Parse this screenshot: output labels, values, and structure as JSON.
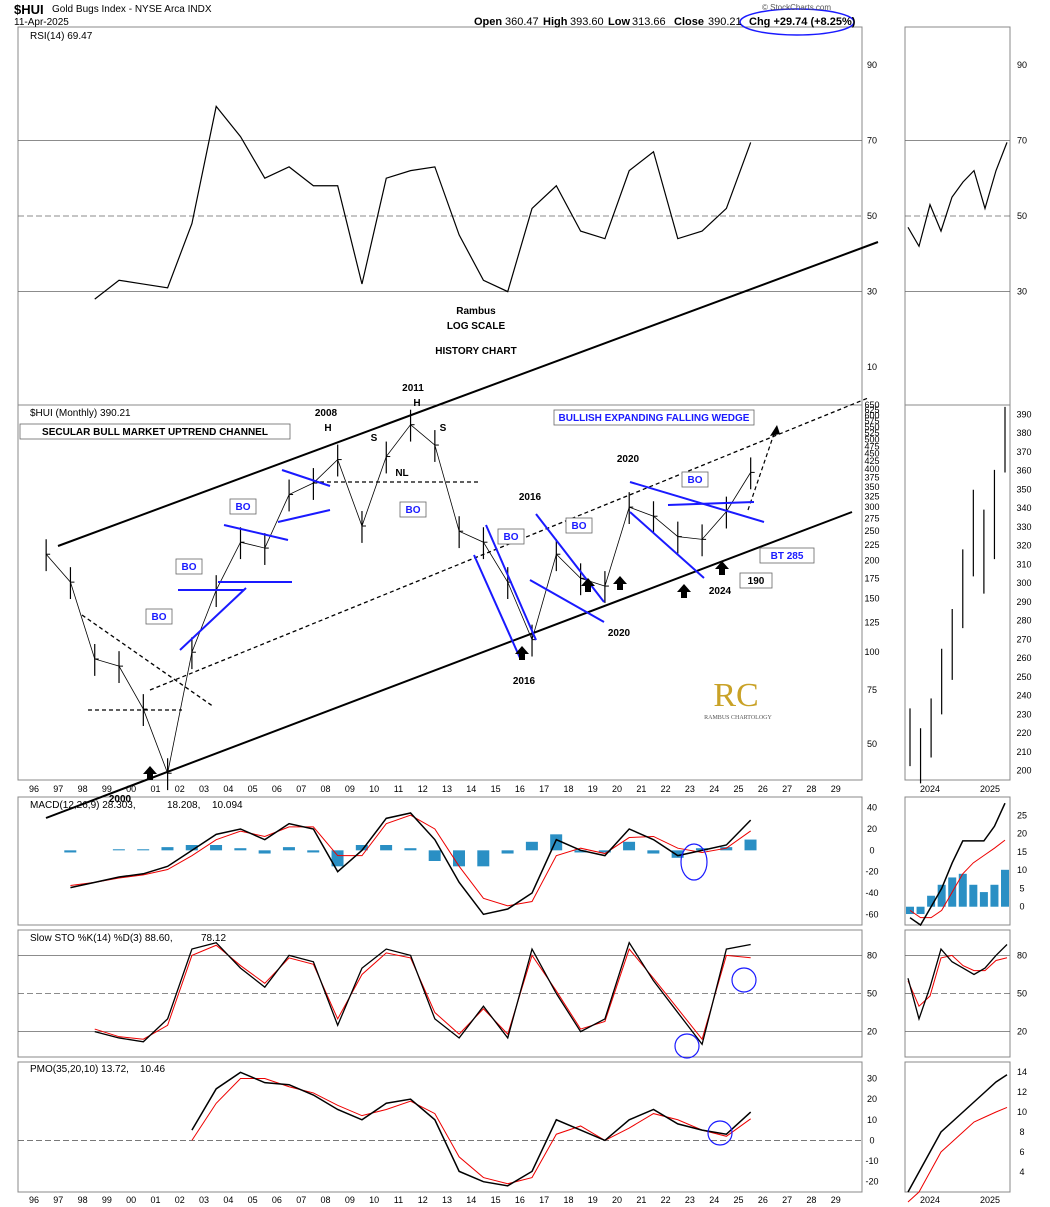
{
  "header": {
    "symbol": "$HUI",
    "name": "Gold Bugs Index - NYSE Arca INDX",
    "date": "11-Apr-2025",
    "open_label": "Open",
    "open": "360.47",
    "high_label": "High",
    "high": "393.60",
    "low_label": "Low",
    "low": "313.66",
    "close_label": "Close",
    "close": "390.21",
    "chg": "Chg +29.74 (+8.25%)",
    "watermark": "© StockCharts.com"
  },
  "chart_data": [
    {
      "type": "line",
      "panel": "rsi",
      "legend": "RSI(14) 69.47",
      "ylim": [
        0,
        100
      ],
      "yticks": [
        10,
        30,
        50,
        70,
        90
      ],
      "x": [
        1996,
        1997,
        1998,
        1999,
        2000,
        2001,
        2002,
        2003,
        2004,
        2005,
        2006,
        2007,
        2008,
        2009,
        2010,
        2011,
        2012,
        2013,
        2014,
        2015,
        2016,
        2017,
        2018,
        2019,
        2020,
        2021,
        2022,
        2023,
        2024,
        2025
      ],
      "values": [
        null,
        null,
        28,
        33,
        32,
        31,
        48,
        79,
        71,
        60,
        63,
        58,
        58,
        32,
        60,
        62,
        63,
        45,
        33,
        30,
        52,
        58,
        46,
        44,
        62,
        67,
        44,
        46,
        52,
        69.47
      ]
    },
    {
      "type": "bar",
      "panel": "price",
      "legend": "$HUI (Monthly) 390.21",
      "scale": "log",
      "ylim": [
        38,
        650
      ],
      "yticks": [
        50,
        75,
        100,
        125,
        150,
        175,
        200,
        225,
        250,
        275,
        300,
        325,
        350,
        375,
        400,
        425,
        450,
        475,
        500,
        525,
        550,
        575,
        600,
        625,
        650
      ],
      "xticks": [
        "96",
        "97",
        "98",
        "99",
        "00",
        "01",
        "02",
        "03",
        "04",
        "05",
        "06",
        "07",
        "08",
        "09",
        "10",
        "11",
        "12",
        "13",
        "14",
        "15",
        "16",
        "17",
        "18",
        "19",
        "20",
        "21",
        "22",
        "23",
        "24",
        "25",
        "26",
        "27",
        "28",
        "29"
      ],
      "x": [
        1996,
        1997,
        1998,
        1999,
        2000,
        2001,
        2002,
        2003,
        2004,
        2005,
        2006,
        2007,
        2008,
        2009,
        2010,
        2011,
        2012,
        2013,
        2014,
        2015,
        2016,
        2017,
        2018,
        2019,
        2020,
        2021,
        2022,
        2023,
        2024,
        2025
      ],
      "values": [
        210,
        170,
        95,
        90,
        65,
        40,
        100,
        160,
        230,
        220,
        330,
        360,
        430,
        260,
        440,
        560,
        480,
        250,
        230,
        170,
        110,
        210,
        175,
        165,
        300,
        280,
        240,
        235,
        290,
        390.21
      ],
      "annotations": {
        "channel_title": "SECULAR BULL MARKET UPTREND CHANNEL",
        "wedge_title": "BULLISH EXPANDING FALLING WEDGE",
        "rambus": "Rambus",
        "log_scale": "LOG SCALE",
        "history": "HISTORY CHART",
        "bo": "BO",
        "y2000": "2000",
        "y2008": "2008",
        "y2011": "2011",
        "y2016": "2016",
        "y2020": "2020",
        "y2024": "2024",
        "h": "H",
        "s": "S",
        "nl": "NL",
        "bt": "BT 285",
        "v190": "190",
        "logo_text": "RAMBUS CHARTOLOGY"
      }
    },
    {
      "type": "line",
      "panel": "macd",
      "legend_main": "MACD(12,26,9) 28.303,",
      "legend_signal": "18.208,",
      "legend_hist": "10.094",
      "ylim": [
        -70,
        50
      ],
      "yticks": [
        -60,
        -40,
        -20,
        0,
        20,
        40
      ],
      "x": [
        1996,
        1997,
        1998,
        1999,
        2000,
        2001,
        2002,
        2003,
        2004,
        2005,
        2006,
        2007,
        2008,
        2009,
        2010,
        2011,
        2012,
        2013,
        2014,
        2015,
        2016,
        2017,
        2018,
        2019,
        2020,
        2021,
        2022,
        2023,
        2024,
        2025
      ],
      "series": [
        {
          "name": "MACD",
          "values": [
            null,
            -35,
            -30,
            -25,
            -22,
            -15,
            0,
            15,
            20,
            10,
            25,
            20,
            -20,
            0,
            30,
            35,
            10,
            -30,
            -60,
            -55,
            -40,
            10,
            0,
            -5,
            20,
            10,
            -5,
            0,
            5,
            28.303
          ]
        },
        {
          "name": "Signal",
          "values": [
            null,
            -33,
            -30,
            -26,
            -23,
            -18,
            -5,
            10,
            18,
            13,
            22,
            22,
            -5,
            -5,
            25,
            33,
            20,
            -15,
            -45,
            -52,
            -48,
            -5,
            2,
            -3,
            12,
            13,
            2,
            -2,
            2,
            18.208
          ]
        }
      ]
    },
    {
      "type": "line",
      "panel": "stoch",
      "legend_main": "Slow STO %K(14) %D(3) 88.60,",
      "legend_d": "78.12",
      "ylim": [
        0,
        100
      ],
      "yticks": [
        20,
        50,
        80
      ],
      "x": [
        1996,
        1997,
        1998,
        1999,
        2000,
        2001,
        2002,
        2003,
        2004,
        2005,
        2006,
        2007,
        2008,
        2009,
        2010,
        2011,
        2012,
        2013,
        2014,
        2015,
        2016,
        2017,
        2018,
        2019,
        2020,
        2021,
        2022,
        2023,
        2024,
        2025
      ],
      "series": [
        {
          "name": "%K",
          "values": [
            null,
            null,
            20,
            15,
            12,
            30,
            85,
            90,
            70,
            55,
            80,
            75,
            25,
            70,
            85,
            80,
            30,
            15,
            40,
            15,
            85,
            50,
            20,
            30,
            90,
            60,
            35,
            10,
            85,
            88.6
          ]
        },
        {
          "name": "%D",
          "values": [
            null,
            null,
            22,
            16,
            14,
            25,
            80,
            88,
            72,
            58,
            78,
            73,
            30,
            65,
            82,
            78,
            35,
            18,
            38,
            18,
            80,
            52,
            22,
            28,
            85,
            62,
            38,
            14,
            80,
            78.12
          ]
        }
      ]
    },
    {
      "type": "line",
      "panel": "pmo",
      "legend_main": "PMO(35,20,10) 13.72,",
      "legend_signal": "10.46",
      "ylim": [
        -25,
        38
      ],
      "yticks": [
        -20,
        -10,
        0,
        10,
        20,
        30
      ],
      "x": [
        1996,
        1997,
        1998,
        1999,
        2000,
        2001,
        2002,
        2003,
        2004,
        2005,
        2006,
        2007,
        2008,
        2009,
        2010,
        2011,
        2012,
        2013,
        2014,
        2015,
        2016,
        2017,
        2018,
        2019,
        2020,
        2021,
        2022,
        2023,
        2024,
        2025
      ],
      "series": [
        {
          "name": "PMO",
          "values": [
            null,
            null,
            null,
            null,
            null,
            null,
            5,
            25,
            33,
            28,
            27,
            22,
            15,
            10,
            18,
            20,
            10,
            -15,
            -20,
            -22,
            -15,
            10,
            5,
            0,
            10,
            15,
            8,
            5,
            3,
            13.72
          ]
        },
        {
          "name": "Signal",
          "values": [
            null,
            null,
            null,
            null,
            null,
            null,
            0,
            18,
            30,
            30,
            26,
            23,
            17,
            12,
            15,
            19,
            13,
            -8,
            -18,
            -21,
            -18,
            3,
            7,
            0,
            6,
            13,
            10,
            5,
            2,
            10.46
          ]
        }
      ]
    }
  ],
  "zoom": {
    "xticks": [
      "2024",
      "2025"
    ],
    "rsi_yticks": [
      30,
      50,
      70,
      90
    ],
    "price_yticks": [
      200,
      210,
      220,
      230,
      240,
      250,
      260,
      270,
      280,
      290,
      300,
      310,
      320,
      330,
      340,
      350,
      360,
      370,
      380,
      390
    ],
    "macd_yticks": [
      0,
      5,
      10,
      15,
      20,
      25
    ],
    "stoch_yticks": [
      20,
      50,
      80
    ],
    "pmo_yticks": [
      4,
      6,
      8,
      10,
      12,
      14
    ],
    "rsi_values": [
      47,
      42,
      53,
      46,
      55,
      59,
      62,
      52,
      62,
      69.47
    ],
    "price_values": [
      220,
      210,
      225,
      250,
      270,
      300,
      330,
      320,
      340,
      390.21
    ],
    "macd_values": [
      -3,
      -5,
      0,
      5,
      12,
      18,
      18,
      18,
      22,
      28.303
    ],
    "macd_signal": [
      -1,
      -3,
      -3,
      -1,
      4,
      9,
      12,
      14,
      16,
      18.208
    ],
    "macd_hist": [
      -2,
      -2,
      3,
      6,
      8,
      9,
      6,
      4,
      6,
      10.094
    ],
    "stoch_values": [
      62,
      30,
      55,
      85,
      75,
      70,
      65,
      70,
      80,
      88.6
    ],
    "stoch_d": [
      60,
      40,
      48,
      78,
      80,
      72,
      68,
      68,
      76,
      78.12
    ],
    "pmo_values": [
      2,
      4,
      6,
      8,
      9,
      10,
      11,
      12,
      13,
      13.72
    ],
    "pmo_signal": [
      1,
      2,
      4,
      6,
      7,
      8,
      9,
      9.5,
      10,
      10.46
    ]
  }
}
